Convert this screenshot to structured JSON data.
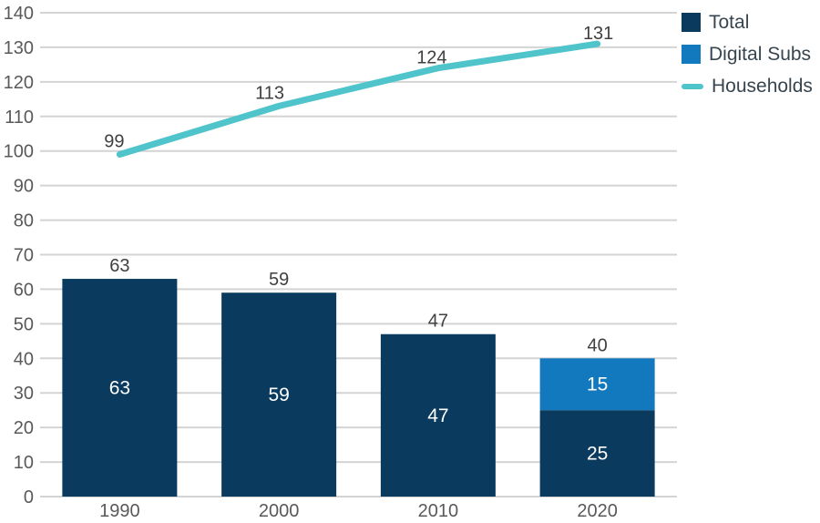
{
  "chart_data": {
    "type": "combo",
    "subtype": "stacked-bar-with-line",
    "categories": [
      "1990",
      "2000",
      "2010",
      "2020"
    ],
    "series": [
      {
        "name": "Total",
        "type": "bar",
        "color": "#0a3a5e",
        "values": [
          63,
          59,
          47,
          25
        ],
        "segment_labels": [
          "63",
          "59",
          "47",
          "25"
        ]
      },
      {
        "name": "Digital Subs",
        "type": "bar",
        "color": "#1379be",
        "values": [
          null,
          null,
          null,
          15
        ],
        "segment_labels": [
          null,
          null,
          null,
          "15"
        ]
      },
      {
        "name": "Households",
        "type": "line",
        "color": "#4fc4cb",
        "values": [
          99,
          113,
          124,
          131
        ],
        "point_labels": [
          "99",
          "113",
          "124",
          "131"
        ]
      }
    ],
    "bar_top_labels": [
      "63",
      "59",
      "47",
      "40"
    ],
    "ylim": [
      0,
      140
    ],
    "ytick_step": 10,
    "ytick_labels": [
      "0",
      "10",
      "20",
      "30",
      "40",
      "50",
      "60",
      "70",
      "80",
      "90",
      "100",
      "110",
      "120",
      "130",
      "140"
    ],
    "grid": true,
    "legend_position": "top-right"
  },
  "legend": {
    "items": [
      {
        "label": "Total",
        "swatch": "square",
        "color": "#0a3a5e"
      },
      {
        "label": "Digital Subs",
        "swatch": "square",
        "color": "#1379be"
      },
      {
        "label": "Households",
        "swatch": "line",
        "color": "#4fc4cb"
      }
    ]
  },
  "colors": {
    "background": "#ffffff",
    "grid": "#d4d4d4",
    "tick_text": "#595959",
    "data_label_text": "#404040",
    "inside_label_text": "#ffffff",
    "legend_text": "#37454f"
  }
}
